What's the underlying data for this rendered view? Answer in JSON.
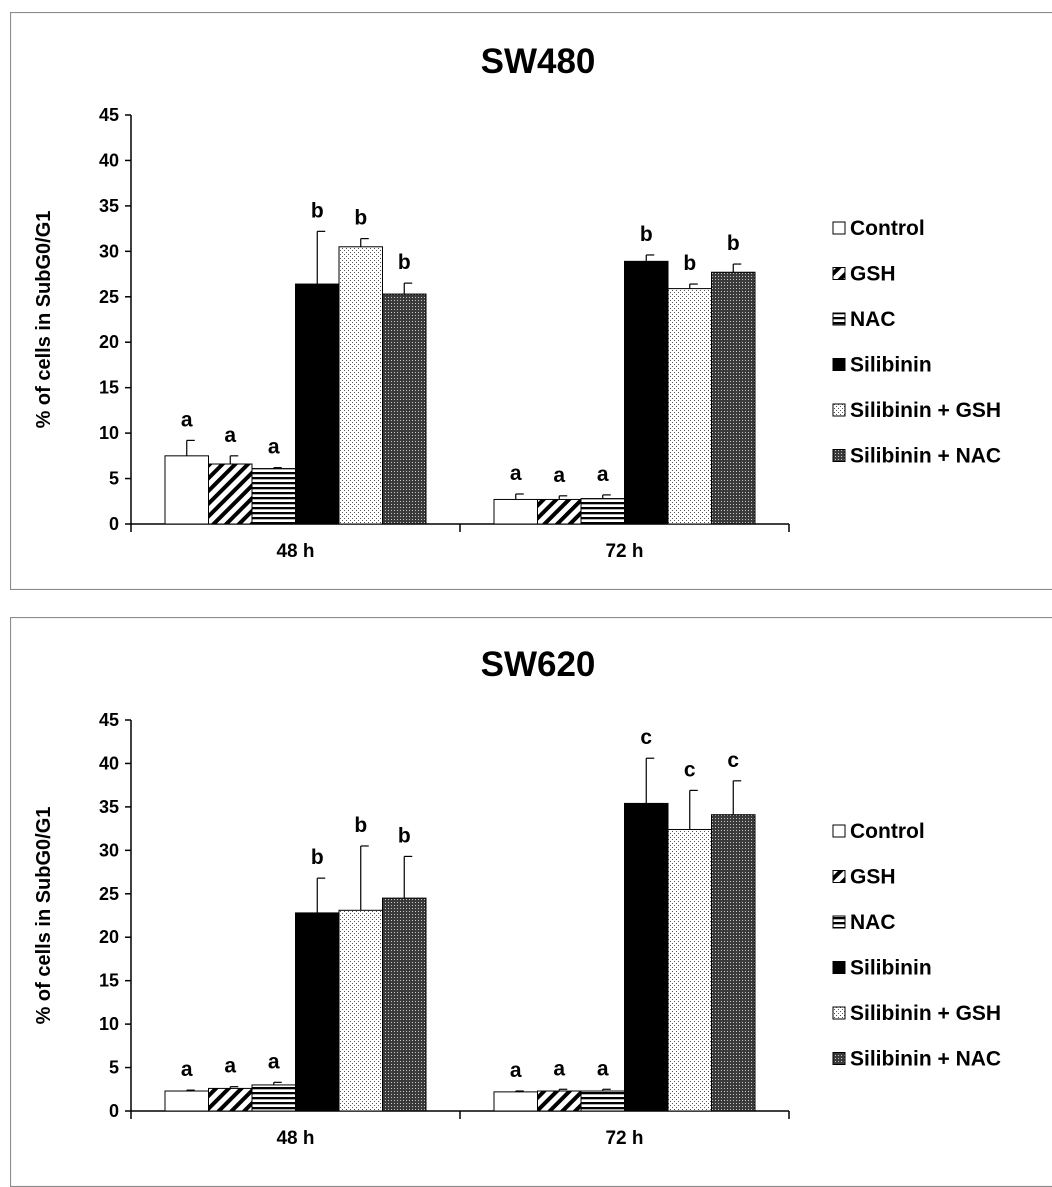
{
  "chart_data": [
    {
      "type": "bar",
      "title": "SW480",
      "xlabel": "",
      "ylabel": "% of cells in SubG0/G1",
      "ylim": [
        0,
        45
      ],
      "yticks": [
        0,
        5,
        10,
        15,
        20,
        25,
        30,
        35,
        40,
        45
      ],
      "categories": [
        "48 h",
        "72 h"
      ],
      "legend_position": "right",
      "grid": false,
      "series": [
        {
          "name": "Control",
          "values": [
            7.5,
            2.7
          ],
          "errors": [
            1.7,
            0.6
          ],
          "letters": [
            "a",
            "a"
          ],
          "pattern": "white"
        },
        {
          "name": "GSH",
          "values": [
            6.6,
            2.7
          ],
          "errors": [
            0.9,
            0.4
          ],
          "letters": [
            "a",
            "a"
          ],
          "pattern": "diagonal"
        },
        {
          "name": "NAC",
          "values": [
            6.1,
            2.8
          ],
          "errors": [
            0.1,
            0.4
          ],
          "letters": [
            "a",
            "a"
          ],
          "pattern": "horizontal"
        },
        {
          "name": "Silibinin",
          "values": [
            26.4,
            28.9
          ],
          "errors": [
            5.8,
            0.7
          ],
          "letters": [
            "b",
            "b"
          ],
          "pattern": "black"
        },
        {
          "name": "Silibinin + GSH",
          "values": [
            30.5,
            25.9
          ],
          "errors": [
            0.9,
            0.5
          ],
          "letters": [
            "b",
            "b"
          ],
          "pattern": "light-dots"
        },
        {
          "name": "Silibinin + NAC",
          "values": [
            25.3,
            27.7
          ],
          "errors": [
            1.2,
            0.9
          ],
          "letters": [
            "b",
            "b"
          ],
          "pattern": "dark-dots"
        }
      ]
    },
    {
      "type": "bar",
      "title": "SW620",
      "xlabel": "",
      "ylabel": "% of cells in SubG0/G1",
      "ylim": [
        0,
        45
      ],
      "yticks": [
        0,
        5,
        10,
        15,
        20,
        25,
        30,
        35,
        40,
        45
      ],
      "categories": [
        "48 h",
        "72 h"
      ],
      "legend_position": "right",
      "grid": false,
      "series": [
        {
          "name": "Control",
          "values": [
            2.3,
            2.2
          ],
          "errors": [
            0.1,
            0.1
          ],
          "letters": [
            "a",
            "a"
          ],
          "pattern": "white"
        },
        {
          "name": "GSH",
          "values": [
            2.6,
            2.3
          ],
          "errors": [
            0.2,
            0.2
          ],
          "letters": [
            "a",
            "a"
          ],
          "pattern": "diagonal"
        },
        {
          "name": "NAC",
          "values": [
            3.0,
            2.3
          ],
          "errors": [
            0.3,
            0.2
          ],
          "letters": [
            "a",
            "a"
          ],
          "pattern": "horizontal"
        },
        {
          "name": "Silibinin",
          "values": [
            22.8,
            35.4
          ],
          "errors": [
            4.0,
            5.2
          ],
          "letters": [
            "b",
            "c"
          ],
          "pattern": "black"
        },
        {
          "name": "Silibinin + GSH",
          "values": [
            23.1,
            32.4
          ],
          "errors": [
            7.4,
            4.5
          ],
          "letters": [
            "b",
            "c"
          ],
          "pattern": "light-dots"
        },
        {
          "name": "Silibinin + NAC",
          "values": [
            24.5,
            34.1
          ],
          "errors": [
            4.8,
            3.9
          ],
          "letters": [
            "b",
            "c"
          ],
          "pattern": "dark-dots"
        }
      ]
    }
  ]
}
